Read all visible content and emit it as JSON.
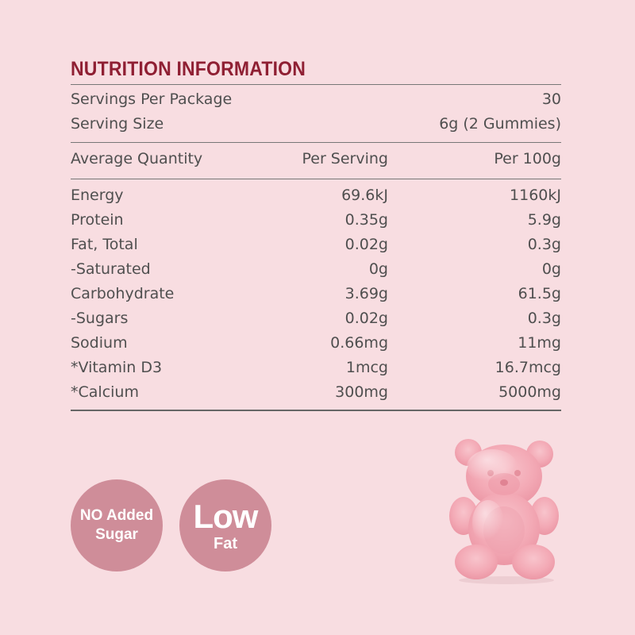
{
  "title": "NUTRITION INFORMATION",
  "servings": [
    {
      "label": "Servings Per Package",
      "value": "30"
    },
    {
      "label": "Serving Size",
      "value": "6g (2 Gummies)"
    }
  ],
  "headers": [
    "Average Quantity",
    "Per Serving",
    "Per 100g"
  ],
  "rows": [
    {
      "name": "Energy",
      "per_serving": "69.6kJ",
      "per_100g": "1160kJ"
    },
    {
      "name": "Protein",
      "per_serving": "0.35g",
      "per_100g": "5.9g"
    },
    {
      "name": "Fat, Total",
      "per_serving": "0.02g",
      "per_100g": "0.3g"
    },
    {
      "name": "-Saturated",
      "per_serving": "0g",
      "per_100g": "0g"
    },
    {
      "name": "Carbohydrate",
      "per_serving": "3.69g",
      "per_100g": "61.5g"
    },
    {
      "name": "-Sugars",
      "per_serving": "0.02g",
      "per_100g": "0.3g"
    },
    {
      "name": "Sodium",
      "per_serving": "0.66mg",
      "per_100g": "11mg"
    },
    {
      "name": "*Vitamin D3",
      "per_serving": "1mcg",
      "per_100g": "16.7mcg"
    },
    {
      "name": "*Calcium",
      "per_serving": "300mg",
      "per_100g": "5000mg"
    }
  ],
  "badges": {
    "no_sugar": {
      "line1": "NO Added",
      "line2": "Sugar"
    },
    "low_fat": {
      "line1": "Low",
      "line2": "Fat"
    }
  },
  "colors": {
    "background": "#f8dde1",
    "title": "#8f1f33",
    "badge": "#cf8d99",
    "text": "#4f4f4f"
  },
  "image": {
    "name": "gummy-bear-image"
  }
}
